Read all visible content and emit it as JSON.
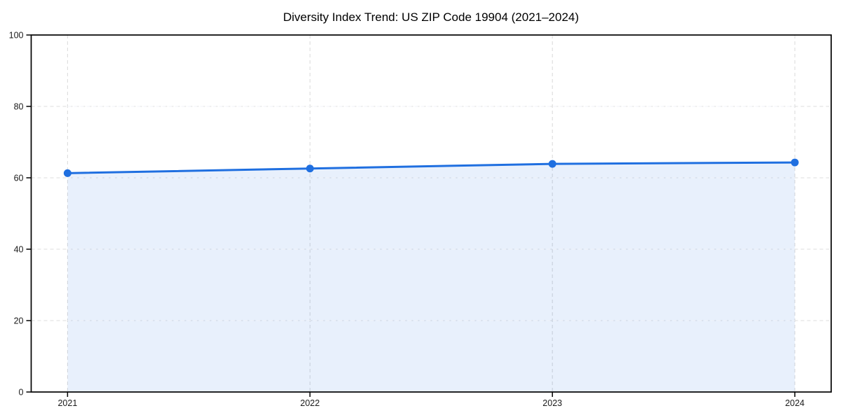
{
  "page": {
    "background_color": "#ffffff"
  },
  "chart_data": {
    "type": "area",
    "title": "Diversity Index Trend: US ZIP Code 19904 (2021–2024)",
    "xlabel": "",
    "ylabel": "",
    "categories": [
      "2021",
      "2022",
      "2023",
      "2024"
    ],
    "x": [
      2021,
      2022,
      2023,
      2024
    ],
    "series": [
      {
        "name": "Diversity Index",
        "values": [
          61.3,
          62.6,
          63.9,
          64.3
        ]
      }
    ],
    "ylim": [
      0,
      100
    ],
    "yticks": [
      0,
      20,
      40,
      60,
      80,
      100
    ],
    "ytick_labels": [
      "0",
      "20",
      "40",
      "60",
      "80",
      "100"
    ],
    "x_margin_frac": 0.05,
    "grid": true,
    "grid_style": "dashed",
    "legend_position": "none",
    "colors": {
      "line": "#1f6fe0",
      "marker": "#1f6fe0",
      "fill": "#1f6fe0",
      "fill_opacity": 0.1,
      "grid": "#dcdcdc",
      "spine": "#000000",
      "tick_label": "#1a1a1a",
      "title": "#000000",
      "background": "#ffffff"
    },
    "marker_shape": "circle",
    "marker_radius": 5.5,
    "line_width": 3
  }
}
